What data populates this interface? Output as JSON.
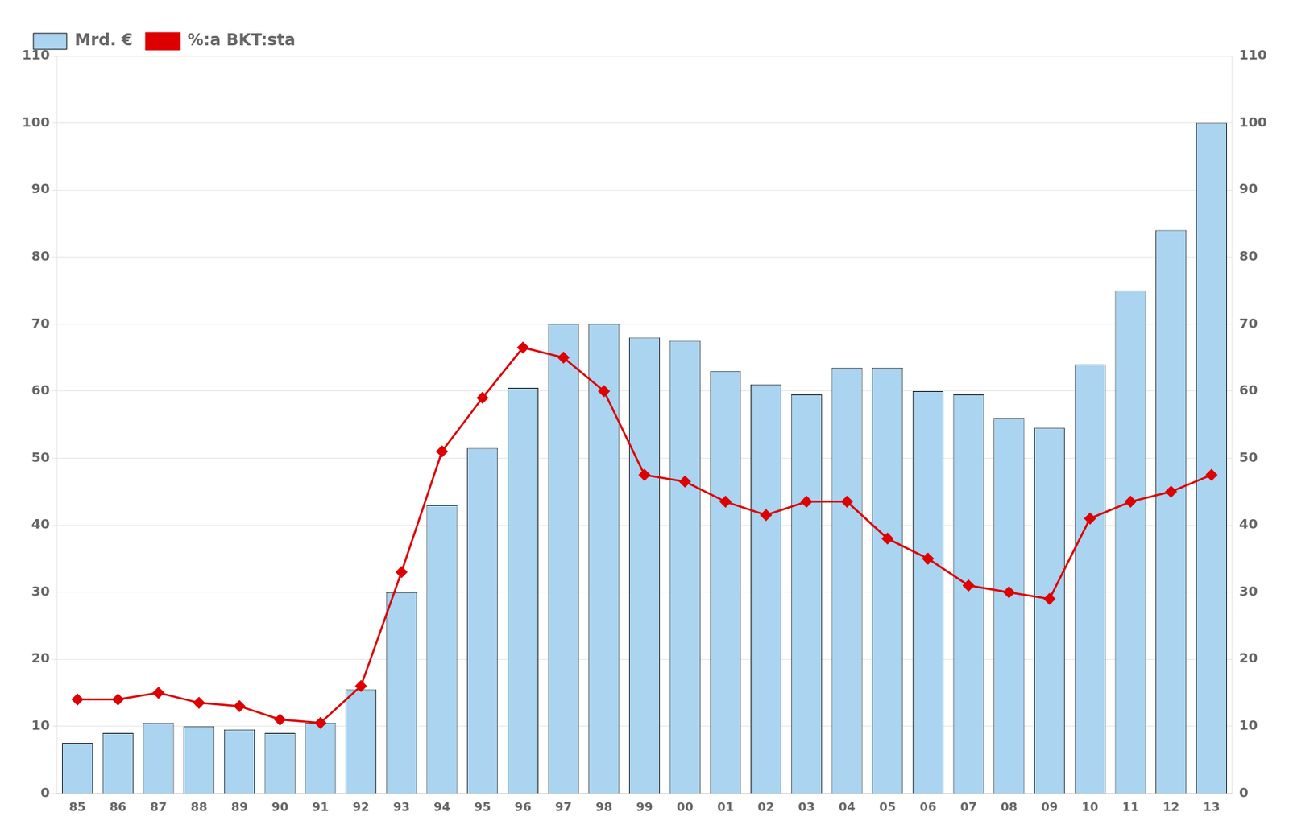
{
  "chart_data": {
    "type": "bar",
    "categories": [
      "85",
      "86",
      "87",
      "88",
      "89",
      "90",
      "91",
      "92",
      "93",
      "94",
      "95",
      "96",
      "97",
      "98",
      "99",
      "00",
      "01",
      "02",
      "03",
      "04",
      "05",
      "06",
      "07",
      "08",
      "09",
      "10",
      "11",
      "12",
      "13"
    ],
    "series": [
      {
        "name": "Mrd. €",
        "type": "bar",
        "color": "#aad4f0",
        "values": [
          7.5,
          9.0,
          10.5,
          10.0,
          9.5,
          9.0,
          10.5,
          15.5,
          30.0,
          43.0,
          51.5,
          60.5,
          70.0,
          70.0,
          68.0,
          67.5,
          63.0,
          61.0,
          59.5,
          63.5,
          63.5,
          60.0,
          59.5,
          56.0,
          54.5,
          64.0,
          75.0,
          84.0,
          100.0
        ]
      },
      {
        "name": "%:a BKT:sta",
        "type": "line",
        "color": "#dd0000",
        "marker": "diamond",
        "axis": "y2",
        "values": [
          14.0,
          14.0,
          15.0,
          13.5,
          13.0,
          11.0,
          10.5,
          16.0,
          33.0,
          51.0,
          59.0,
          66.5,
          65.0,
          60.0,
          47.5,
          46.5,
          43.5,
          41.5,
          43.5,
          43.5,
          38.0,
          35.0,
          31.0,
          30.0,
          29.0,
          41.0,
          43.5,
          45.0,
          47.5
        ]
      }
    ],
    "ylim": [
      0,
      110
    ],
    "yticks": [
      0,
      10,
      20,
      30,
      40,
      50,
      60,
      70,
      80,
      90,
      100,
      110
    ],
    "y2lim": [
      0,
      110
    ],
    "y2ticks": [
      0,
      10,
      20,
      30,
      40,
      50,
      60,
      70,
      80,
      90,
      100,
      110
    ],
    "grid": true,
    "legend": "upper left"
  }
}
